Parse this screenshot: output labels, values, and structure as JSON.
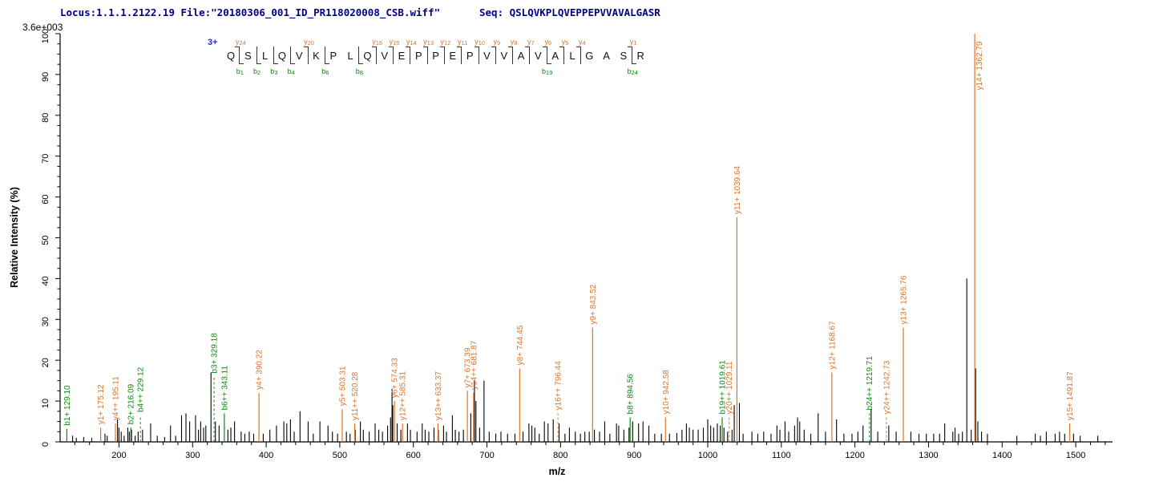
{
  "header": {
    "locus_file": "Locus:1.1.1.2122.19 File:\"20180306_001_ID_PR118020008_CSB.wiff\"",
    "seq": "Seq: QSLQVKPLQVEPPEPVVAVALGASR"
  },
  "precursor_charge": "3+",
  "colors": {
    "y_ion": "#dd7428",
    "b_ion": "#0e8a0e",
    "peak": "#000000",
    "header_text": "#00008b",
    "precursor": "#2a2ad4",
    "axis": "#000000"
  },
  "sequence_overlay": {
    "residues": [
      "Q",
      "S",
      "L",
      "Q",
      "V",
      "K",
      "P",
      "L",
      "Q",
      "V",
      "E",
      "P",
      "P",
      "E",
      "P",
      "V",
      "V",
      "A",
      "V",
      "A",
      "L",
      "G",
      "A",
      "S",
      "R"
    ],
    "cleavages": [
      {
        "after": 1,
        "y": "y24",
        "b": "b1"
      },
      {
        "after": 2,
        "b": "b2"
      },
      {
        "after": 3,
        "b": "b3"
      },
      {
        "after": 4,
        "b": "b4"
      },
      {
        "after": 5,
        "y": "y20"
      },
      {
        "after": 6,
        "b": "b6"
      },
      {
        "after": 8,
        "b": "b8"
      },
      {
        "after": 9,
        "y": "y16"
      },
      {
        "after": 10,
        "y": "y15"
      },
      {
        "after": 11,
        "y": "y14"
      },
      {
        "after": 12,
        "y": "y13"
      },
      {
        "after": 13,
        "y": "y12"
      },
      {
        "after": 14,
        "y": "y11"
      },
      {
        "after": 15,
        "y": "y10"
      },
      {
        "after": 16,
        "y": "y9"
      },
      {
        "after": 17,
        "y": "y8"
      },
      {
        "after": 18,
        "y": "y7"
      },
      {
        "after": 19,
        "y": "y6",
        "b": "b19"
      },
      {
        "after": 20,
        "y": "y5"
      },
      {
        "after": 21,
        "y": "y4"
      },
      {
        "after": 24,
        "y": "y1",
        "b": "b24"
      }
    ]
  },
  "chart_data": {
    "type": "bar",
    "subtype": "ms2-stick-spectrum",
    "title": "",
    "xlabel": "m/z",
    "ylabel": "Relative Intensity (%)",
    "intensity_scale_label": "3.6e+003",
    "xlim": [
      120,
      1550
    ],
    "ylim": [
      0,
      100
    ],
    "x_major_ticks": [
      200,
      300,
      400,
      500,
      600,
      700,
      800,
      900,
      1000,
      1100,
      1200,
      1300,
      1400,
      1500
    ],
    "x_minor_step": 20,
    "y_major_step": 10,
    "y_minor_step": 2.5,
    "legend": "none",
    "grid": false,
    "labeled_peaks": [
      {
        "ion": "b1+",
        "mz": 129.1,
        "mz_label": "129.10",
        "intensity": 3.2,
        "series": "b",
        "dashed": false
      },
      {
        "ion": "y1+",
        "mz": 175.12,
        "mz_label": "175.12",
        "intensity": 3.5,
        "series": "y",
        "dashed": false
      },
      {
        "ion": "y4++",
        "mz": 195.11,
        "mz_label": "195.11",
        "intensity": 4.5,
        "series": "y",
        "dashed": false
      },
      {
        "ion": "b2+",
        "mz": 216.09,
        "mz_label": "216.09",
        "intensity": 3.5,
        "series": "b",
        "dashed": false
      },
      {
        "ion": "b4++",
        "mz": 229.12,
        "mz_label": "229.12",
        "intensity": 6.5,
        "series": "b",
        "dashed": true
      },
      {
        "ion": "b3+",
        "mz": 329.18,
        "mz_label": "329.18",
        "intensity": 16,
        "series": "b",
        "dashed": true
      },
      {
        "ion": "b6++",
        "mz": 343.11,
        "mz_label": "343.11",
        "intensity": 7,
        "series": "b",
        "dashed": false
      },
      {
        "ion": "y4+",
        "mz": 390.22,
        "mz_label": "390.22",
        "intensity": 12,
        "series": "y",
        "dashed": false
      },
      {
        "ion": "y5+",
        "mz": 503.31,
        "mz_label": "503.31",
        "intensity": 8,
        "series": "y",
        "dashed": false
      },
      {
        "ion": "y11++",
        "mz": 520.28,
        "mz_label": "520.28",
        "intensity": 4.5,
        "series": "y",
        "dashed": false
      },
      {
        "ion": "y6+",
        "mz": 574.33,
        "mz_label": "574.33",
        "intensity": 10,
        "series": "y",
        "dashed": false
      },
      {
        "ion": "y12++",
        "mz": 585.31,
        "mz_label": "585.31",
        "intensity": 4.5,
        "series": "y",
        "dashed": false
      },
      {
        "ion": "y13++",
        "mz": 633.37,
        "mz_label": "633.37",
        "intensity": 4.5,
        "series": "y",
        "dashed": false
      },
      {
        "ion": "y7+",
        "mz": 673.39,
        "mz_label": "673.39",
        "intensity": 12.5,
        "series": "y",
        "dashed": false
      },
      {
        "ion": "y14++",
        "mz": 681.87,
        "mz_label": "681.87",
        "intensity": 12,
        "series": "y",
        "dashed": false
      },
      {
        "ion": "y8+",
        "mz": 744.45,
        "mz_label": "744.45",
        "intensity": 18,
        "series": "y",
        "dashed": false
      },
      {
        "ion": "y16++",
        "mz": 796.44,
        "mz_label": "796.44",
        "intensity": 7,
        "series": "y",
        "dashed": true
      },
      {
        "ion": "y9+",
        "mz": 843.52,
        "mz_label": "843.52",
        "intensity": 28,
        "series": "y",
        "dashed": false
      },
      {
        "ion": "b8+",
        "mz": 894.56,
        "mz_label": "894.56",
        "intensity": 6,
        "series": "b",
        "dashed": false
      },
      {
        "ion": "y10+",
        "mz": 942.58,
        "mz_label": "942.58",
        "intensity": 6,
        "series": "y",
        "dashed": false
      },
      {
        "ion": "b19++",
        "mz": 1019.61,
        "mz_label": "1019.61",
        "intensity": 6,
        "series": "b",
        "dashed": false
      },
      {
        "ion": "y20++",
        "mz": 1029.11,
        "mz_label": "1029.11",
        "intensity": 6,
        "series": "y",
        "dashed": true
      },
      {
        "ion": "y11+",
        "mz": 1039.64,
        "mz_label": "1039.64",
        "intensity": 55,
        "series": "y",
        "dashed": false
      },
      {
        "ion": "y12+",
        "mz": 1168.67,
        "mz_label": "1168.67",
        "intensity": 17,
        "series": "y",
        "dashed": false
      },
      {
        "ion": "b24++",
        "mz": 1219.71,
        "mz_label": "1219.71",
        "intensity": 7,
        "series": "b",
        "dashed": true
      },
      {
        "ion": "y24++",
        "mz": 1242.73,
        "mz_label": "1242.73",
        "intensity": 6,
        "series": "y",
        "dashed": true
      },
      {
        "ion": "y13+",
        "mz": 1265.76,
        "mz_label": "1265.76",
        "intensity": 28,
        "series": "y",
        "dashed": false
      },
      {
        "ion": "y14+",
        "mz": 1362.79,
        "mz_label": "1362.79",
        "intensity": 100,
        "series": "y",
        "dashed": false
      },
      {
        "ion": "y15+",
        "mz": 1491.87,
        "mz_label": "1491.87",
        "intensity": 4.5,
        "series": "y",
        "dashed": false
      }
    ],
    "unlabeled_peaks": [
      [
        137,
        1.5
      ],
      [
        142,
        1
      ],
      [
        152,
        1.2
      ],
      [
        163,
        1
      ],
      [
        181,
        2
      ],
      [
        184,
        1.5
      ],
      [
        198,
        5.5
      ],
      [
        200,
        3.5
      ],
      [
        203,
        2.5
      ],
      [
        207,
        1.5
      ],
      [
        212,
        3.5
      ],
      [
        214,
        2.5
      ],
      [
        217,
        3
      ],
      [
        222,
        1.5
      ],
      [
        226,
        2.5
      ],
      [
        232,
        3
      ],
      [
        243,
        4.5
      ],
      [
        252,
        1.5
      ],
      [
        262,
        1.2
      ],
      [
        270,
        4
      ],
      [
        277,
        1.5
      ],
      [
        285,
        6.5
      ],
      [
        291,
        7
      ],
      [
        296,
        5
      ],
      [
        304,
        6.5
      ],
      [
        308,
        3
      ],
      [
        311,
        5
      ],
      [
        315,
        3.5
      ],
      [
        318,
        4
      ],
      [
        325,
        17
      ],
      [
        331,
        5
      ],
      [
        336,
        4
      ],
      [
        348,
        3
      ],
      [
        352,
        3.5
      ],
      [
        357,
        5
      ],
      [
        366,
        2.5
      ],
      [
        371,
        2
      ],
      [
        377,
        2.5
      ],
      [
        383,
        2
      ],
      [
        396,
        2
      ],
      [
        405,
        3
      ],
      [
        414,
        4
      ],
      [
        424,
        5
      ],
      [
        428,
        4.5
      ],
      [
        433,
        5.5
      ],
      [
        438,
        2.5
      ],
      [
        446,
        7.5
      ],
      [
        457,
        5
      ],
      [
        464,
        2
      ],
      [
        473,
        5
      ],
      [
        484,
        4
      ],
      [
        490,
        2.5
      ],
      [
        497,
        2
      ],
      [
        509,
        2.5
      ],
      [
        514,
        2
      ],
      [
        521,
        3
      ],
      [
        528,
        5
      ],
      [
        532,
        3
      ],
      [
        540,
        2.5
      ],
      [
        548,
        4.5
      ],
      [
        553,
        3
      ],
      [
        558,
        2.5
      ],
      [
        565,
        4
      ],
      [
        569,
        6
      ],
      [
        571,
        13
      ],
      [
        572,
        9
      ],
      [
        578,
        4.5
      ],
      [
        583,
        3
      ],
      [
        592,
        4.5
      ],
      [
        596,
        3
      ],
      [
        605,
        2.5
      ],
      [
        612,
        4.5
      ],
      [
        616,
        3
      ],
      [
        621,
        2.5
      ],
      [
        628,
        3.5
      ],
      [
        634,
        3
      ],
      [
        641,
        4
      ],
      [
        645,
        2.5
      ],
      [
        653,
        6.5
      ],
      [
        657,
        3
      ],
      [
        662,
        2.5
      ],
      [
        668,
        3
      ],
      [
        678,
        7
      ],
      [
        683,
        15
      ],
      [
        685,
        10
      ],
      [
        690,
        3.5
      ],
      [
        696,
        15
      ],
      [
        703,
        2.5
      ],
      [
        712,
        2
      ],
      [
        719,
        2.5
      ],
      [
        728,
        2
      ],
      [
        738,
        2
      ],
      [
        749,
        2.5
      ],
      [
        757,
        4.5
      ],
      [
        761,
        4
      ],
      [
        765,
        3.5
      ],
      [
        771,
        2
      ],
      [
        778,
        5
      ],
      [
        783,
        4.5
      ],
      [
        790,
        5.5
      ],
      [
        798,
        4.5
      ],
      [
        806,
        2
      ],
      [
        812,
        3.5
      ],
      [
        820,
        2.5
      ],
      [
        827,
        2
      ],
      [
        833,
        2.5
      ],
      [
        839,
        2.5
      ],
      [
        846,
        3
      ],
      [
        853,
        2.5
      ],
      [
        860,
        5
      ],
      [
        867,
        2
      ],
      [
        876,
        4.5
      ],
      [
        879,
        4
      ],
      [
        886,
        3
      ],
      [
        893,
        3.5
      ],
      [
        898,
        5
      ],
      [
        906,
        4.5
      ],
      [
        912,
        5
      ],
      [
        920,
        4
      ],
      [
        928,
        2
      ],
      [
        937,
        2
      ],
      [
        948,
        2
      ],
      [
        958,
        2.2
      ],
      [
        965,
        3
      ],
      [
        971,
        4.5
      ],
      [
        975,
        3.5
      ],
      [
        980,
        3
      ],
      [
        987,
        3
      ],
      [
        994,
        3.5
      ],
      [
        1000,
        5.5
      ],
      [
        1004,
        4
      ],
      [
        1008,
        3.5
      ],
      [
        1013,
        4.5
      ],
      [
        1017,
        4
      ],
      [
        1022,
        3.5
      ],
      [
        1027,
        2.5
      ],
      [
        1033,
        3
      ],
      [
        1036,
        9
      ],
      [
        1043,
        9.5
      ],
      [
        1048,
        2
      ],
      [
        1060,
        2.5
      ],
      [
        1068,
        2
      ],
      [
        1076,
        2.5
      ],
      [
        1086,
        2
      ],
      [
        1094,
        4
      ],
      [
        1098,
        3
      ],
      [
        1105,
        5
      ],
      [
        1110,
        2.5
      ],
      [
        1118,
        4
      ],
      [
        1122,
        6
      ],
      [
        1125,
        5
      ],
      [
        1131,
        3
      ],
      [
        1140,
        2
      ],
      [
        1150,
        7
      ],
      [
        1160,
        2.5
      ],
      [
        1175,
        5.5
      ],
      [
        1185,
        2
      ],
      [
        1196,
        2
      ],
      [
        1204,
        2.5
      ],
      [
        1211,
        4
      ],
      [
        1222,
        8
      ],
      [
        1231,
        2.5
      ],
      [
        1246,
        4
      ],
      [
        1256,
        2.5
      ],
      [
        1276,
        2.5
      ],
      [
        1287,
        2
      ],
      [
        1297,
        2
      ],
      [
        1307,
        2
      ],
      [
        1315,
        2
      ],
      [
        1322,
        4.5
      ],
      [
        1333,
        2.5
      ],
      [
        1336,
        3.5
      ],
      [
        1341,
        2
      ],
      [
        1346,
        2.5
      ],
      [
        1352,
        40
      ],
      [
        1358,
        3
      ],
      [
        1364,
        18
      ],
      [
        1367,
        5
      ],
      [
        1372,
        2.5
      ],
      [
        1380,
        2
      ],
      [
        1420,
        1.5
      ],
      [
        1445,
        2
      ],
      [
        1452,
        1.5
      ],
      [
        1460,
        2.5
      ],
      [
        1472,
        2
      ],
      [
        1478,
        2.5
      ],
      [
        1485,
        2
      ],
      [
        1497,
        2
      ],
      [
        1506,
        1.5
      ],
      [
        1530,
        1.5
      ]
    ]
  }
}
